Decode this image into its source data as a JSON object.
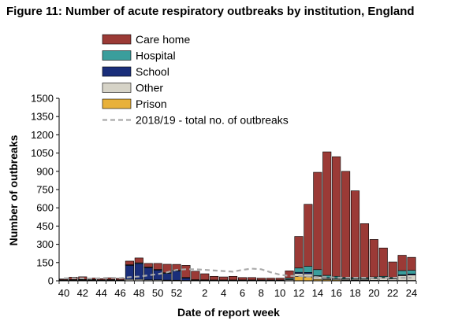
{
  "chart_data": {
    "type": "bar",
    "stacked": true,
    "title": "Figure 11: Number of acute respiratory outbreaks by institution, England",
    "xlabel": "Date of report week",
    "ylabel": "Number of outbreaks",
    "ylim": [
      0,
      1500
    ],
    "yticks": [
      "0",
      "150",
      "300",
      "450",
      "600",
      "750",
      "900",
      "1050",
      "1200",
      "1350",
      "1500"
    ],
    "ytick_values": [
      0,
      150,
      300,
      450,
      600,
      750,
      900,
      1050,
      1200,
      1350,
      1500
    ],
    "categories": [
      40,
      41,
      42,
      43,
      44,
      45,
      46,
      47,
      48,
      49,
      50,
      51,
      52,
      53,
      1,
      2,
      3,
      4,
      5,
      6,
      7,
      8,
      9,
      10,
      11,
      12,
      13,
      14,
      15,
      16,
      17,
      18,
      19,
      20,
      21,
      22,
      23,
      24
    ],
    "xtick_labels": [
      "40",
      "42",
      "44",
      "46",
      "48",
      "50",
      "52",
      "2",
      "4",
      "6",
      "8",
      "10",
      "12",
      "14",
      "16",
      "18",
      "20",
      "22",
      "24"
    ],
    "xtick_indices": [
      0,
      2,
      4,
      6,
      8,
      10,
      12,
      15,
      17,
      19,
      21,
      23,
      25,
      27,
      29,
      31,
      33,
      35,
      37
    ],
    "series": [
      {
        "name": "Prison",
        "color": "#e8b13a",
        "values": [
          0,
          0,
          0,
          0,
          0,
          0,
          0,
          0,
          0,
          0,
          0,
          0,
          0,
          0,
          0,
          0,
          0,
          0,
          0,
          0,
          0,
          0,
          0,
          0,
          2,
          35,
          32,
          12,
          10,
          8,
          6,
          5,
          5,
          4,
          4,
          3,
          3,
          3
        ]
      },
      {
        "name": "Other",
        "color": "#d6d3c7",
        "values": [
          4,
          4,
          5,
          5,
          3,
          4,
          3,
          12,
          12,
          8,
          8,
          6,
          5,
          3,
          4,
          4,
          3,
          3,
          3,
          3,
          3,
          3,
          3,
          3,
          8,
          25,
          25,
          25,
          10,
          10,
          8,
          8,
          8,
          15,
          20,
          12,
          40,
          45
        ]
      },
      {
        "name": "School",
        "color": "#1a2e7a",
        "values": [
          2,
          3,
          3,
          3,
          2,
          3,
          2,
          115,
          130,
          100,
          80,
          55,
          75,
          20,
          2,
          1,
          1,
          1,
          1,
          1,
          1,
          1,
          1,
          1,
          2,
          10,
          12,
          5,
          5,
          4,
          4,
          3,
          3,
          3,
          3,
          3,
          6,
          8
        ]
      },
      {
        "name": "Hospital",
        "color": "#3a9e9c",
        "values": [
          3,
          3,
          3,
          3,
          3,
          3,
          3,
          5,
          6,
          5,
          5,
          5,
          5,
          4,
          3,
          3,
          3,
          3,
          3,
          3,
          3,
          3,
          3,
          3,
          10,
          35,
          50,
          50,
          20,
          15,
          10,
          10,
          10,
          10,
          10,
          10,
          35,
          30
        ]
      },
      {
        "name": "Care home",
        "color": "#9b3a36",
        "values": [
          6,
          20,
          22,
          12,
          10,
          15,
          12,
          30,
          40,
          30,
          50,
          70,
          50,
          100,
          70,
          50,
          30,
          25,
          30,
          20,
          20,
          15,
          15,
          15,
          60,
          260,
          510,
          800,
          1015,
          983,
          872,
          714,
          444,
          308,
          233,
          127,
          126,
          107
        ]
      }
    ],
    "dashed_series": {
      "name": "2018/19 - total no. of outbreaks",
      "color": "#aaaaaa",
      "values": [
        20,
        22,
        20,
        18,
        22,
        25,
        22,
        30,
        35,
        45,
        55,
        70,
        90,
        95,
        95,
        90,
        85,
        80,
        75,
        90,
        100,
        95,
        70,
        50,
        40,
        40,
        35,
        30,
        30,
        28,
        25,
        25,
        25,
        25,
        25,
        25,
        25,
        25
      ]
    },
    "legend_order": [
      "Care home",
      "Hospital",
      "School",
      "Other",
      "Prison",
      "2018/19 - total no. of outbreaks"
    ],
    "legend_position": "top-left",
    "grid": false
  }
}
